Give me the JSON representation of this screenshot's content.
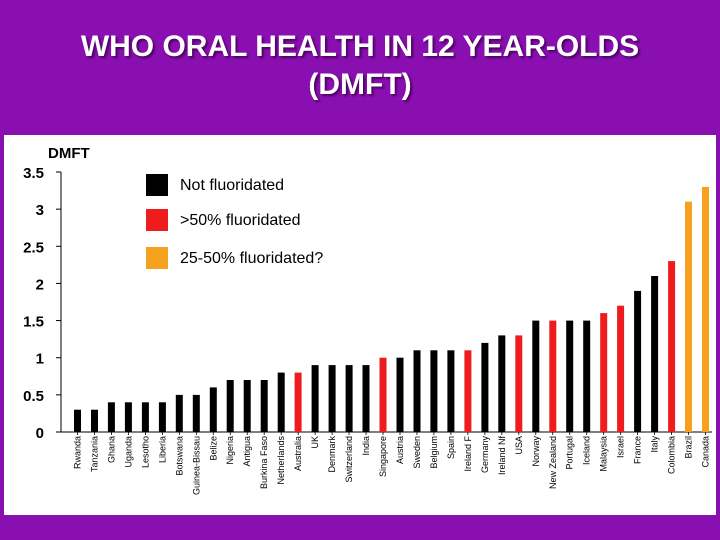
{
  "title_lines": [
    "WHO ORAL HEALTH IN 12 YEAR-OLDS",
    "(DMFT)"
  ],
  "colors": {
    "background": "#8a0fb0",
    "not_fluoridated": "#000000",
    "over_50": "#ee1c1c",
    "between_25_50": "#f6a020"
  },
  "chart_data": {
    "type": "bar",
    "title": "WHO ORAL HEALTH IN 12 YEAR-OLDS (DMFT)",
    "ylabel": "DMFT",
    "xlabel": "",
    "ylim": [
      0,
      3.5
    ],
    "yticks": [
      0,
      0.5,
      1,
      1.5,
      2,
      2.5,
      3,
      3.5
    ],
    "ytick_labels": [
      "0",
      "0.5",
      "1",
      "1.5",
      "2",
      "2.5",
      "3",
      "3.5"
    ],
    "grid": false,
    "legend_position": "top-left",
    "legend": [
      {
        "key": "not",
        "label": "Not fluoridated"
      },
      {
        "key": "over50",
        "label": ">50% fluoridated"
      },
      {
        "key": "mid",
        "label": "25-50% fluoridated?"
      }
    ],
    "categories": [
      "Rwanda",
      "Tanzania",
      "Ghana",
      "Uganda",
      "Lesotho",
      "Liberia",
      "Botswana",
      "Guinea-Bissau",
      "Belize",
      "Nigeria",
      "Antigua",
      "Burkina Faso",
      "Netherlands",
      "Australia",
      "UK",
      "Denmark",
      "Switzerland",
      "India",
      "Singapore",
      "Austria",
      "Sweden",
      "Belgium",
      "Spain",
      "Ireland F",
      "Germany",
      "Ireland Nf",
      "USA",
      "Norway",
      "New Zealand",
      "Portugal",
      "Iceland",
      "Malaysia",
      "Israel",
      "France",
      "Italy",
      "Colombia",
      "Brazil",
      "Canada"
    ],
    "values": [
      0.3,
      0.3,
      0.4,
      0.4,
      0.4,
      0.4,
      0.5,
      0.5,
      0.6,
      0.7,
      0.7,
      0.7,
      0.8,
      0.8,
      0.9,
      0.9,
      0.9,
      0.9,
      1.0,
      1.0,
      1.1,
      1.1,
      1.1,
      1.1,
      1.2,
      1.3,
      1.3,
      1.5,
      1.5,
      1.5,
      1.5,
      1.6,
      1.7,
      1.9,
      2.1,
      2.3,
      3.1,
      3.3
    ],
    "groups": [
      "not",
      "not",
      "not",
      "not",
      "not",
      "not",
      "not",
      "not",
      "not",
      "not",
      "not",
      "not",
      "not",
      "over50",
      "not",
      "not",
      "not",
      "not",
      "over50",
      "not",
      "not",
      "not",
      "not",
      "over50",
      "not",
      "not",
      "over50",
      "not",
      "over50",
      "not",
      "not",
      "over50",
      "over50",
      "not",
      "not",
      "over50",
      "mid",
      "mid"
    ]
  }
}
